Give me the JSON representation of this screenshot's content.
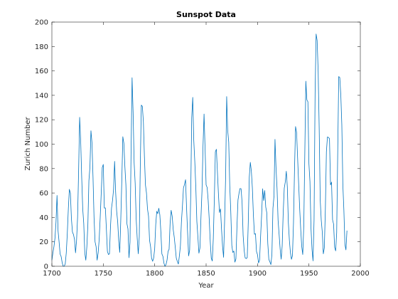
{
  "chart_data": {
    "type": "line",
    "title": "Sunspot Data",
    "xlabel": "Year",
    "ylabel": "Zurich Number",
    "xlim": [
      1700,
      2000
    ],
    "ylim": [
      0,
      200
    ],
    "xticks": [
      1700,
      1750,
      1800,
      1850,
      1900,
      1950,
      2000
    ],
    "yticks": [
      0,
      20,
      40,
      60,
      80,
      100,
      120,
      140,
      160,
      180,
      200
    ],
    "grid": false,
    "box": true,
    "line_color": "#0072BD",
    "series": [
      {
        "x": [
          1700,
          1701,
          1702,
          1703,
          1704,
          1705,
          1706,
          1707,
          1708,
          1709,
          1710,
          1711,
          1712,
          1713,
          1714,
          1715,
          1716,
          1717,
          1718,
          1719,
          1720,
          1721,
          1722,
          1723,
          1724,
          1725,
          1726,
          1727,
          1728,
          1729,
          1730,
          1731,
          1732,
          1733,
          1734,
          1735,
          1736,
          1737,
          1738,
          1739,
          1740,
          1741,
          1742,
          1743,
          1744,
          1745,
          1746,
          1747,
          1748,
          1749,
          1750,
          1751,
          1752,
          1753,
          1754,
          1755,
          1756,
          1757,
          1758,
          1759,
          1760,
          1761,
          1762,
          1763,
          1764,
          1765,
          1766,
          1767,
          1768,
          1769,
          1770,
          1771,
          1772,
          1773,
          1774,
          1775,
          1776,
          1777,
          1778,
          1779,
          1780,
          1781,
          1782,
          1783,
          1784,
          1785,
          1786,
          1787,
          1788,
          1789,
          1790,
          1791,
          1792,
          1793,
          1794,
          1795,
          1796,
          1797,
          1798,
          1799,
          1800,
          1801,
          1802,
          1803,
          1804,
          1805,
          1806,
          1807,
          1808,
          1809,
          1810,
          1811,
          1812,
          1813,
          1814,
          1815,
          1816,
          1817,
          1818,
          1819,
          1820,
          1821,
          1822,
          1823,
          1824,
          1825,
          1826,
          1827,
          1828,
          1829,
          1830,
          1831,
          1832,
          1833,
          1834,
          1835,
          1836,
          1837,
          1838,
          1839,
          1840,
          1841,
          1842,
          1843,
          1844,
          1845,
          1846,
          1847,
          1848,
          1849,
          1850,
          1851,
          1852,
          1853,
          1854,
          1855,
          1856,
          1857,
          1858,
          1859,
          1860,
          1861,
          1862,
          1863,
          1864,
          1865,
          1866,
          1867,
          1868,
          1869,
          1870,
          1871,
          1872,
          1873,
          1874,
          1875,
          1876,
          1877,
          1878,
          1879,
          1880,
          1881,
          1882,
          1883,
          1884,
          1885,
          1886,
          1887,
          1888,
          1889,
          1890,
          1891,
          1892,
          1893,
          1894,
          1895,
          1896,
          1897,
          1898,
          1899,
          1900,
          1901,
          1902,
          1903,
          1904,
          1905,
          1906,
          1907,
          1908,
          1909,
          1910,
          1911,
          1912,
          1913,
          1914,
          1915,
          1916,
          1917,
          1918,
          1919,
          1920,
          1921,
          1922,
          1923,
          1924,
          1925,
          1926,
          1927,
          1928,
          1929,
          1930,
          1931,
          1932,
          1933,
          1934,
          1935,
          1936,
          1937,
          1938,
          1939,
          1940,
          1941,
          1942,
          1943,
          1944,
          1945,
          1946,
          1947,
          1948,
          1949,
          1950,
          1951,
          1952,
          1953,
          1954,
          1955,
          1956,
          1957,
          1958,
          1959,
          1960,
          1961,
          1962,
          1963,
          1964,
          1965,
          1966,
          1967,
          1968,
          1969,
          1970,
          1971,
          1972,
          1973,
          1974,
          1975,
          1976,
          1977,
          1978,
          1979,
          1980,
          1981,
          1982,
          1983,
          1984,
          1985,
          1986,
          1987
        ],
        "values": [
          5,
          11,
          16,
          23,
          36,
          58,
          29,
          20,
          10,
          8,
          3,
          0,
          0,
          2,
          11,
          27,
          47,
          63,
          60,
          39,
          28,
          26,
          22,
          11,
          21,
          40,
          78,
          122,
          103,
          73,
          47,
          35,
          11,
          5,
          16,
          34,
          70,
          81,
          111,
          101,
          73,
          40,
          20,
          16,
          5,
          11,
          22,
          40,
          60,
          80.9,
          83.4,
          47.7,
          47.8,
          30.7,
          12.2,
          9.6,
          10.2,
          32.4,
          47.6,
          54.0,
          62.9,
          85.9,
          61.2,
          45.1,
          36.4,
          20.9,
          11.4,
          37.8,
          69.8,
          106.1,
          100.8,
          81.6,
          66.5,
          34.8,
          30.6,
          7.0,
          19.8,
          92.5,
          154.4,
          125.9,
          84.8,
          68.1,
          38.5,
          22.8,
          10.2,
          24.1,
          82.9,
          132.0,
          130.9,
          118.1,
          89.9,
          66.6,
          60.0,
          46.9,
          41.0,
          21.3,
          16.0,
          6.4,
          4.1,
          6.8,
          14.5,
          34.0,
          45.0,
          43.1,
          47.5,
          42.2,
          28.1,
          10.1,
          8.1,
          2.5,
          0.0,
          1.4,
          5.0,
          12.2,
          13.9,
          35.4,
          45.8,
          41.1,
          30.1,
          23.9,
          15.6,
          6.6,
          4.0,
          1.8,
          8.5,
          16.6,
          36.3,
          49.6,
          64.2,
          67.0,
          70.9,
          47.8,
          27.5,
          8.5,
          13.2,
          56.9,
          121.5,
          138.3,
          103.2,
          85.7,
          64.6,
          36.7,
          24.2,
          10.7,
          15.0,
          40.1,
          61.5,
          98.5,
          124.7,
          96.3,
          66.6,
          64.5,
          54.1,
          39.0,
          20.6,
          6.7,
          4.3,
          22.7,
          54.8,
          93.8,
          95.8,
          77.2,
          59.1,
          44.0,
          47.0,
          30.5,
          16.3,
          7.3,
          37.6,
          74.0,
          139.0,
          111.2,
          101.6,
          66.2,
          44.7,
          17.0,
          11.3,
          12.4,
          3.4,
          6.0,
          32.3,
          54.3,
          59.7,
          63.7,
          63.5,
          52.2,
          25.4,
          13.1,
          6.8,
          6.3,
          7.1,
          35.6,
          73.0,
          85.1,
          78.0,
          64.0,
          41.8,
          26.2,
          26.7,
          12.1,
          9.5,
          2.7,
          5.0,
          24.4,
          42.0,
          63.5,
          53.8,
          62.0,
          48.5,
          43.9,
          18.6,
          5.7,
          3.6,
          1.4,
          9.6,
          47.4,
          57.1,
          103.9,
          80.6,
          63.6,
          37.6,
          26.1,
          14.2,
          5.8,
          16.7,
          44.3,
          63.9,
          69.0,
          77.8,
          64.9,
          35.7,
          21.2,
          11.1,
          5.7,
          8.7,
          36.1,
          79.7,
          114.4,
          109.6,
          88.8,
          67.8,
          47.5,
          30.6,
          16.3,
          9.6,
          33.2,
          92.6,
          151.6,
          136.3,
          134.7,
          83.9,
          69.4,
          31.5,
          13.9,
          4.4,
          38.0,
          141.7,
          190.2,
          184.8,
          159.0,
          112.3,
          53.9,
          37.6,
          27.9,
          10.2,
          15.1,
          47.0,
          93.8,
          105.9,
          105.5,
          104.5,
          66.6,
          68.9,
          38.0,
          34.5,
          15.5,
          12.6,
          27.5,
          92.5,
          155.4,
          154.6,
          140.5,
          115.9,
          66.6,
          45.9,
          17.9,
          13.4,
          29.2
        ]
      }
    ]
  }
}
